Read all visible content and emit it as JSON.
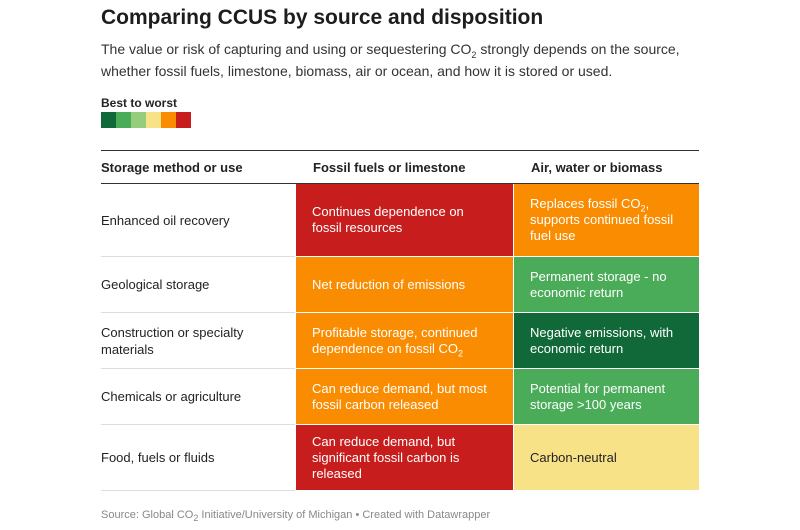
{
  "header": {
    "title": "Comparing CCUS by source and disposition",
    "subtitle": [
      "The value or risk of capturing and using or sequestering CO",
      "2",
      " strongly depends on the source, whether fossil fuels, limestone, biomass, air or ocean, and how it is stored or used."
    ]
  },
  "legend": {
    "title": "Best to worst",
    "colors": [
      "#11693a",
      "#4aac59",
      "#95cd7d",
      "#f8e287",
      "#f98c00",
      "#c71e1d"
    ]
  },
  "table": {
    "columns": [
      "Storage method or use",
      "Fossil fuels or limestone",
      "Air, water or biomass"
    ],
    "rows": [
      {
        "label": "Enhanced oil recovery",
        "cells": [
          {
            "text": "Continues dependence on fossil resources",
            "color": "#c71e1d"
          },
          {
            "text": [
              "Replaces fossil CO",
              "2",
              ", supports continued fossil fuel use"
            ],
            "color": "#f98c00"
          }
        ]
      },
      {
        "label": "Geological storage",
        "cells": [
          {
            "text": "Net reduction of emissions",
            "color": "#f98c00"
          },
          {
            "text": "Permanent storage - no economic return",
            "color": "#4aac59"
          }
        ]
      },
      {
        "label": "Construction or specialty materials",
        "cells": [
          {
            "text": [
              "Profitable storage, continued dependence on fossil CO",
              "2"
            ],
            "color": "#f98c00"
          },
          {
            "text": "Negative emissions, with economic return",
            "color": "#11693a"
          }
        ]
      },
      {
        "label": "Chemicals or agriculture",
        "cells": [
          {
            "text": "Can reduce demand, but most fossil carbon released",
            "color": "#f98c00"
          },
          {
            "text": "Potential for permanent storage >100 years",
            "color": "#4aac59"
          }
        ]
      },
      {
        "label": "Food, fuels or fluids",
        "cells": [
          {
            "text": "Can reduce demand, but significant fossil carbon is released",
            "color": "#c71e1d"
          },
          {
            "text": "Carbon-neutral",
            "color": "#f8e287"
          }
        ]
      }
    ]
  },
  "footer": {
    "source": [
      "Source: Global CO",
      "2",
      " Initiative/University of Michigan • Created with Datawrapper"
    ]
  }
}
